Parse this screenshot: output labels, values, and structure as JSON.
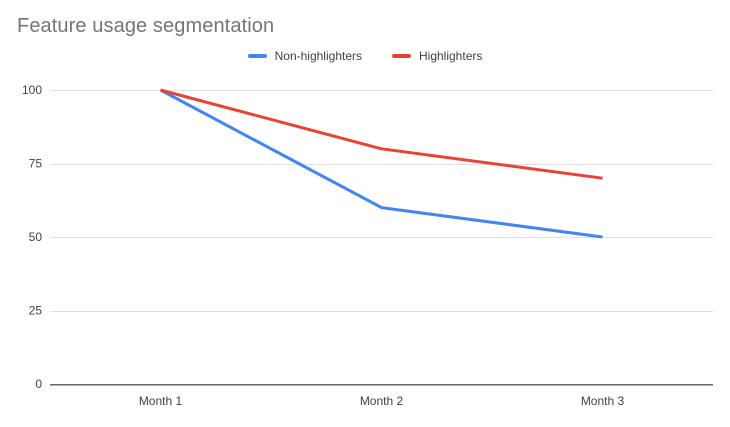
{
  "page": {
    "background": "#ffffff"
  },
  "chart_data": {
    "type": "line",
    "title": "Feature usage segmentation",
    "categories": [
      "Month 1",
      "Month 2",
      "Month 3"
    ],
    "series": [
      {
        "name": "Non-highlighters",
        "color": "#4285F4",
        "values": [
          100,
          60,
          50
        ]
      },
      {
        "name": "Highlighters",
        "color": "#EA4335",
        "values": [
          100,
          80,
          70
        ]
      }
    ],
    "xlabel": "",
    "ylabel": "",
    "ylim": [
      0,
      100
    ],
    "yticks": [
      0,
      25,
      50,
      75,
      100
    ],
    "grid": true,
    "legend_position": "top-center",
    "styles": {
      "title_color": "#757575",
      "tick_label_color": "#424242",
      "gridline_color": "#E0E0E0",
      "axis_line_color": "#666666",
      "line_width": 3
    }
  }
}
